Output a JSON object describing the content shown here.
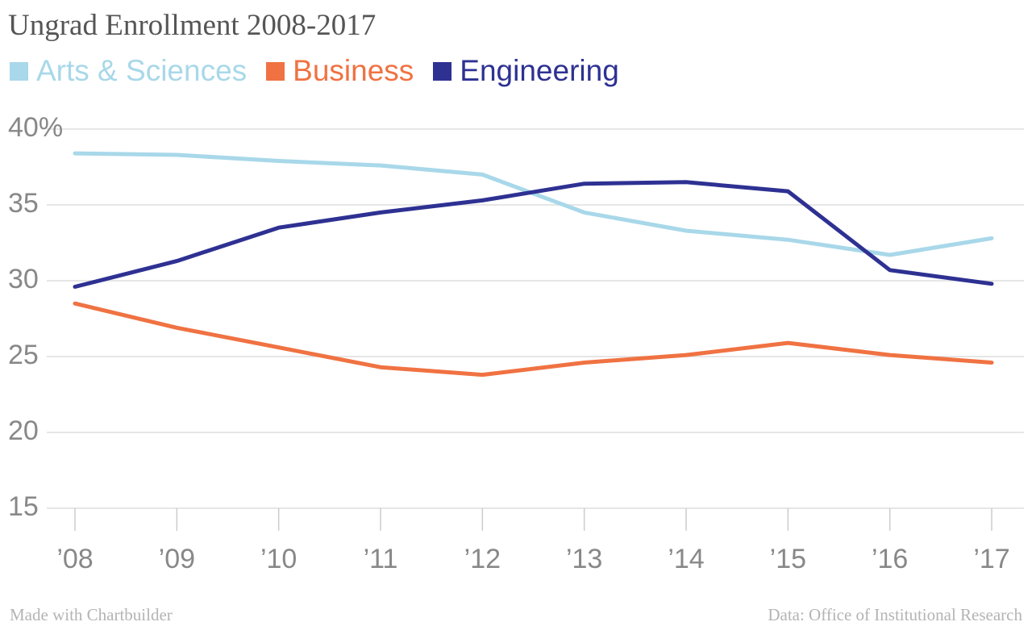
{
  "chart_data": {
    "type": "line",
    "title": "Ungrad Enrollment 2008-2017",
    "categories": [
      "’08",
      "’09",
      "’10",
      "’11",
      "’12",
      "’13",
      "’14",
      "’15",
      "’16",
      "’17"
    ],
    "series": [
      {
        "name": "Arts & Sciences",
        "color": "#a8d8e9",
        "values": [
          38.4,
          38.3,
          37.9,
          37.6,
          37.0,
          34.5,
          33.3,
          32.7,
          31.7,
          32.8
        ]
      },
      {
        "name": "Business",
        "color": "#f07242",
        "values": [
          28.5,
          26.9,
          25.6,
          24.3,
          23.8,
          24.6,
          25.1,
          25.9,
          25.1,
          24.6
        ]
      },
      {
        "name": "Engineering",
        "color": "#2e3192",
        "values": [
          29.6,
          31.3,
          33.5,
          34.5,
          35.3,
          36.4,
          36.5,
          35.9,
          30.7,
          29.8
        ]
      }
    ],
    "yticks": [
      15,
      20,
      25,
      30,
      35,
      40
    ],
    "ytick_labels": [
      "15",
      "20",
      "25",
      "30",
      "35",
      "40%"
    ],
    "ylim": [
      15,
      40
    ],
    "xlabel": "",
    "ylabel": "",
    "grid": true,
    "legend_position": "top-left"
  },
  "footer": {
    "credit": "Made with Chartbuilder",
    "source": "Data: Office of Institutional Research"
  }
}
